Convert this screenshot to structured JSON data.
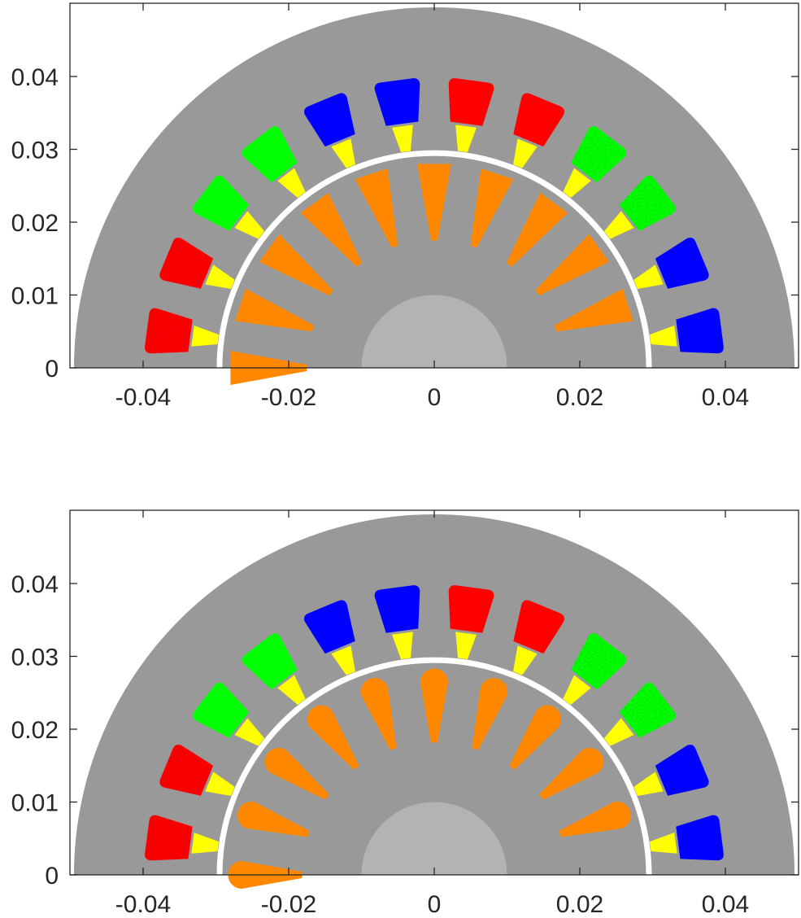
{
  "colors": {
    "stator": "#999999",
    "shaft": "#b3b3b3",
    "magnet": "#ff8800",
    "tooth_tip": "#ffff00",
    "air_gap": "#ffffff",
    "axes": "#262626"
  },
  "phase_colors": [
    "#ff0000",
    "#0000ff",
    "#00ff00"
  ],
  "slot_phases": [
    0,
    0,
    2,
    2,
    1,
    1,
    0,
    0,
    2,
    2,
    1,
    1
  ],
  "slot_textured": [
    true,
    true,
    false,
    false,
    false,
    false,
    false,
    false,
    true,
    true,
    false,
    false
  ],
  "geometry_m": {
    "stator_outer_radius": 0.0495,
    "air_gap_radius": 0.0295,
    "shaft_radius": 0.01,
    "slot_inner_radius": 0.0338,
    "slot_outer_radius": 0.0398,
    "magnet_inner_radius": 0.0175,
    "magnet_outer_radius": 0.028
  },
  "plots": [
    {
      "magnet_shape": "trapezoid",
      "xlim": [
        -0.05,
        0.05
      ],
      "ylim": [
        0,
        0.05
      ],
      "xticks": [
        -0.04,
        -0.02,
        0,
        0.02,
        0.04
      ],
      "xtick_labels": [
        "-0.04",
        "-0.02",
        "0",
        "0.02",
        "0.04"
      ],
      "yticks": [
        0,
        0.01,
        0.02,
        0.03,
        0.04
      ],
      "ytick_labels": [
        "0",
        "0.01",
        "0.02",
        "0.03",
        "0.04"
      ]
    },
    {
      "magnet_shape": "teardrop",
      "xlim": [
        -0.05,
        0.05
      ],
      "ylim": [
        0,
        0.05
      ],
      "xticks": [
        -0.04,
        -0.02,
        0,
        0.02,
        0.04
      ],
      "xtick_labels": [
        "-0.04",
        "-0.02",
        "0",
        "0.02",
        "0.04"
      ],
      "yticks": [
        0,
        0.01,
        0.02,
        0.03,
        0.04
      ],
      "ytick_labels": [
        "0",
        "0.01",
        "0.02",
        "0.03",
        "0.04"
      ]
    }
  ]
}
